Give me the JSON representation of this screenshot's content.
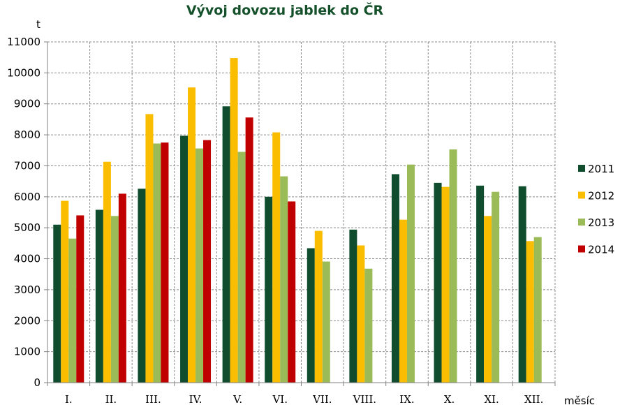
{
  "chart_data": {
    "type": "bar",
    "title": "Vývoj dovozu jablek do ČR",
    "ylabel": "t",
    "xlabel": "měsíc",
    "ylim": [
      0,
      11000
    ],
    "yticks": [
      0,
      1000,
      2000,
      3000,
      4000,
      5000,
      6000,
      7000,
      8000,
      9000,
      10000,
      11000
    ],
    "grid": true,
    "legend_position": "right",
    "categories": [
      "I.",
      "II.",
      "III.",
      "IV.",
      "V.",
      "VI.",
      "VII.",
      "VIII.",
      "IX.",
      "X.",
      "XI.",
      "XII."
    ],
    "series": [
      {
        "name": "2011",
        "color": "#0f4d2e",
        "values": [
          5100,
          5580,
          6260,
          7970,
          8920,
          6000,
          4340,
          4940,
          6730,
          6450,
          6360,
          6340
        ]
      },
      {
        "name": "2012",
        "color": "#fbbd00",
        "values": [
          5870,
          7130,
          8670,
          9530,
          10480,
          8080,
          4900,
          4430,
          5260,
          6320,
          5380,
          4570
        ]
      },
      {
        "name": "2013",
        "color": "#9bbb59",
        "values": [
          4650,
          5380,
          7720,
          7560,
          7450,
          6660,
          3910,
          3680,
          7040,
          7530,
          6160,
          4700
        ]
      },
      {
        "name": "2014",
        "color": "#c00000",
        "values": [
          5400,
          6100,
          7750,
          7830,
          8560,
          5850,
          null,
          null,
          null,
          null,
          null,
          null
        ]
      }
    ]
  }
}
